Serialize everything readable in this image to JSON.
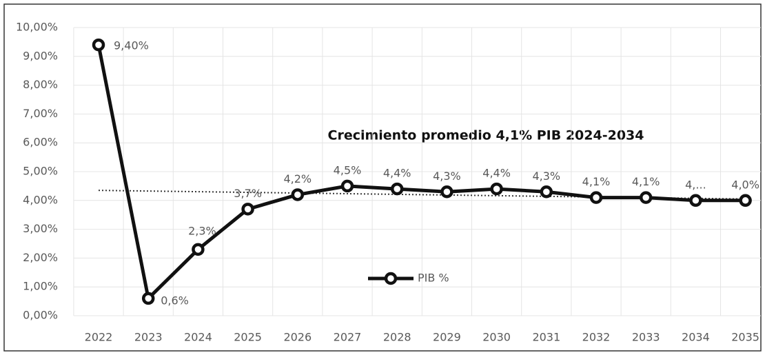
{
  "chart_data": {
    "type": "line",
    "annotation": "Crecimiento promedio 4,1% PIB 2024-2034",
    "categories": [
      "2022",
      "2023",
      "2024",
      "2025",
      "2026",
      "2027",
      "2028",
      "2029",
      "2030",
      "2031",
      "2032",
      "2033",
      "2034",
      "2035"
    ],
    "series": [
      {
        "name": "PIB %",
        "color": "#111111",
        "values": [
          9.4,
          0.6,
          2.3,
          3.7,
          4.2,
          4.5,
          4.4,
          4.3,
          4.4,
          4.3,
          4.1,
          4.1,
          4.0,
          4.0
        ],
        "value_labels": [
          "9,40%",
          "0,6%",
          "2,3%",
          "3,7%",
          "4,2%",
          "4,5%",
          "4,4%",
          "4,3%",
          "4,4%",
          "4,3%",
          "4,1%",
          "4,1%",
          "4,...",
          "4,0%"
        ]
      }
    ],
    "trendline": [
      4.35,
      4.05
    ],
    "ylim": [
      0,
      10
    ],
    "yticks": [
      {
        "value": 0,
        "label": "0,00%"
      },
      {
        "value": 1,
        "label": "1,00%"
      },
      {
        "value": 2,
        "label": "2,00%"
      },
      {
        "value": 3,
        "label": "3,00%"
      },
      {
        "value": 4,
        "label": "4,00%"
      },
      {
        "value": 5,
        "label": "5,00%"
      },
      {
        "value": 6,
        "label": "6,00%"
      },
      {
        "value": 7,
        "label": "7,00%"
      },
      {
        "value": 8,
        "label": "8,00%"
      },
      {
        "value": 9,
        "label": "9,00%"
      },
      {
        "value": 10,
        "label": "10,00%"
      }
    ],
    "grid": true,
    "legend": "center"
  }
}
